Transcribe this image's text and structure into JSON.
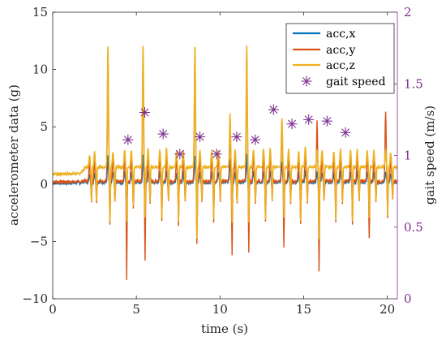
{
  "chart_data": {
    "type": "line",
    "xlabel": "time (s)",
    "ylabel_left": "accelerometer data (g)",
    "ylabel_right": "gait speed (m/s)",
    "xlim": [
      0,
      20.6
    ],
    "ylim_left": [
      -10,
      15
    ],
    "ylim_right": [
      0,
      2
    ],
    "x_ticks": [
      "0",
      "5",
      "10",
      "15",
      "20"
    ],
    "y_left_ticks": [
      "−10",
      "−5",
      "0",
      "5",
      "10",
      "15"
    ],
    "y_right_ticks": [
      "0",
      "0.5",
      "1",
      "1.5",
      "2"
    ],
    "legend_position": "top-right",
    "colors": {
      "acc_x": "#0072bd",
      "acc_y": "#d95319",
      "acc_z": "#edb120",
      "gait_speed": "#7e2f8e",
      "right_axis": "#7e2f8e"
    },
    "series": [
      {
        "name": "acc,x",
        "axis": "left",
        "style": "line"
      },
      {
        "name": "acc,y",
        "axis": "left",
        "style": "line"
      },
      {
        "name": "acc,z",
        "axis": "left",
        "style": "line"
      },
      {
        "name": "gait speed",
        "axis": "right",
        "style": "asterisk-marker"
      }
    ],
    "gait_speed_points": {
      "x": [
        4.5,
        5.5,
        6.6,
        7.6,
        8.8,
        9.8,
        11.0,
        12.1,
        13.2,
        14.3,
        15.3,
        16.4,
        17.5
      ],
      "y": [
        1.11,
        1.3,
        1.15,
        1.01,
        1.13,
        1.01,
        1.13,
        1.11,
        1.32,
        1.22,
        1.25,
        1.24,
        1.16
      ]
    },
    "steps": {
      "time": [
        2.2,
        2.5,
        3.3,
        3.6,
        4.3,
        4.7,
        5.4,
        5.7,
        6.4,
        6.8,
        7.4,
        7.8,
        8.5,
        8.8,
        9.5,
        9.9,
        10.6,
        10.9,
        11.6,
        12.0,
        12.6,
        13.0,
        13.7,
        14.1,
        14.7,
        15.1,
        15.8,
        16.1,
        16.8,
        17.2,
        17.8,
        18.2,
        18.8,
        19.2,
        19.9,
        20.2
      ],
      "acc_z_peak": [
        2.5,
        2.9,
        12.0,
        2.8,
        3.0,
        3.0,
        12.0,
        3.1,
        3.0,
        3.1,
        3.0,
        3.0,
        12.0,
        3.0,
        3.0,
        3.0,
        6.2,
        3.1,
        12.0,
        3.0,
        3.1,
        3.1,
        5.8,
        3.0,
        2.9,
        3.2,
        3.0,
        3.0,
        2.9,
        3.0,
        3.0,
        3.0,
        2.9,
        3.0,
        3.1,
        2.8
      ],
      "acc_y_peak": [
        2.0,
        2.3,
        11.8,
        2.5,
        2.6,
        2.7,
        11.7,
        2.8,
        2.6,
        2.8,
        2.6,
        2.7,
        11.9,
        2.7,
        2.6,
        2.8,
        5.8,
        2.8,
        11.7,
        2.8,
        2.8,
        2.9,
        5.5,
        2.7,
        2.6,
        2.9,
        5.5,
        2.7,
        2.6,
        2.8,
        2.6,
        2.7,
        2.6,
        2.7,
        6.4,
        2.5
      ],
      "acc_z_trough": [
        -1.5,
        -1.4,
        -3.3,
        -1.5,
        -3.3,
        -2.0,
        -3.0,
        -1.5,
        -3.0,
        -1.4,
        -3.2,
        -1.5,
        -4.8,
        -1.5,
        -3.0,
        -1.4,
        -3.3,
        -1.6,
        -3.3,
        -1.5,
        -3.2,
        -1.3,
        -3.0,
        -1.5,
        -3.3,
        -1.5,
        -4.8,
        -1.4,
        -3.2,
        -1.5,
        -3.2,
        -1.3,
        -3.0,
        -1.5,
        -2.7,
        -1.3
      ],
      "acc_y_trough": [
        -1.6,
        -1.5,
        -3.5,
        -1.6,
        -8.4,
        -2.2,
        -6.8,
        -1.6,
        -3.2,
        -1.5,
        -3.6,
        -1.6,
        -5.3,
        -1.6,
        -3.3,
        -1.5,
        -6.1,
        -1.7,
        -5.9,
        -1.6,
        -3.4,
        -1.4,
        -5.6,
        -1.6,
        -3.6,
        -1.6,
        -7.6,
        -1.5,
        -3.4,
        -1.6,
        -3.5,
        -1.4,
        -4.8,
        -1.6,
        -2.9,
        -1.4
      ]
    },
    "baseline": {
      "acc_x": 0.1,
      "acc_y": 0.2,
      "acc_z": 0.9
    }
  }
}
